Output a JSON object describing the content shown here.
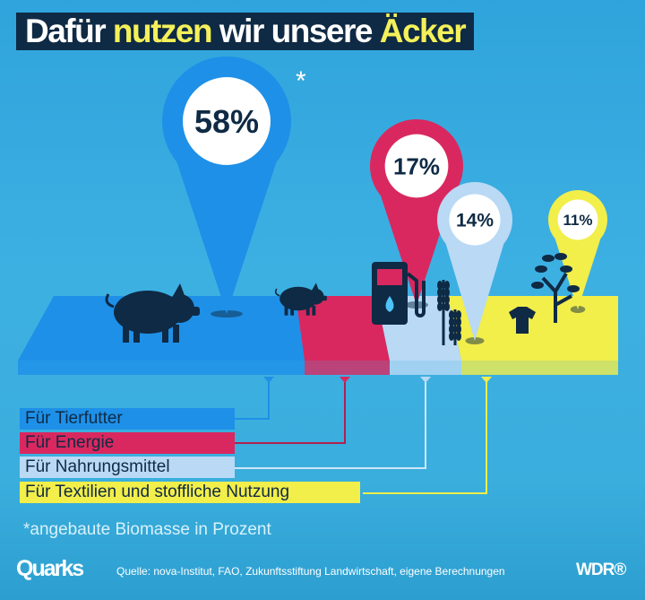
{
  "title": {
    "part1": "Dafür ",
    "part2": "nutzen",
    "part3": " wir unsere ",
    "part4": "Äcker"
  },
  "asterisk": "*",
  "chart_data": {
    "type": "pie",
    "title": "Dafür nutzen wir unsere Äcker",
    "unit": "% angebaute Biomasse",
    "categories": [
      "Für Tierfutter",
      "Für Energie",
      "Für Nahrungsmittel",
      "Für Textilien und stoffliche Nutzung"
    ],
    "values": [
      58,
      17,
      14,
      11
    ],
    "labels": [
      "58%",
      "17%",
      "14%",
      "11%"
    ],
    "colors": [
      "#1e90e8",
      "#d9285f",
      "#b9d9f5",
      "#f2ee4a"
    ]
  },
  "note": "*angebaute Biomasse in Prozent",
  "footer": {
    "logo": "Quarks",
    "source": "Quelle: nova-Institut, FAO, Zukunftsstiftung Landwirtschaft, eigene Berechnungen",
    "broadcaster": "WDR®"
  }
}
